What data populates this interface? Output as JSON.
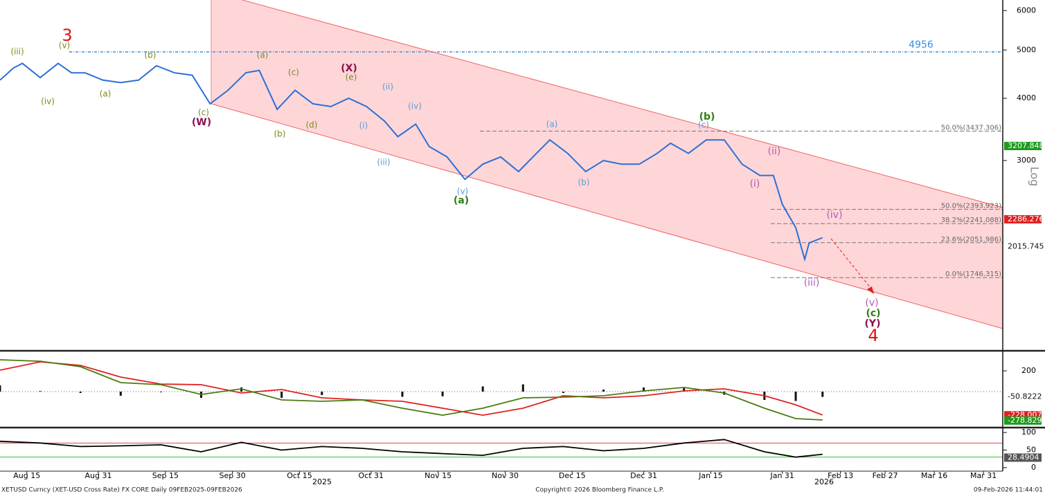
{
  "chart_data": [
    {
      "type": "line",
      "log": true,
      "ylabel": "Log",
      "xlim": [
        "2025-08-09",
        "2026-04-06"
      ],
      "ylim": [
        1245,
        6300
      ],
      "yticks": [
        3000,
        4000,
        5000,
        6000
      ],
      "xticks": [
        {
          "value": "2025-08-15",
          "label": "Aug 15"
        },
        {
          "value": "2025-08-31",
          "label": "Aug 31"
        },
        {
          "value": "2025-09-15",
          "label": "Sep 15"
        },
        {
          "value": "2025-09-30",
          "label": "Sep 30"
        },
        {
          "value": "2025-10-15",
          "label": "Oct 15"
        },
        {
          "value": "2025-10-31",
          "label": "Oct 31"
        },
        {
          "value": "2025-11-15",
          "label": "Nov 15"
        },
        {
          "value": "2025-11-30",
          "label": "Nov 30"
        },
        {
          "value": "2025-12-15",
          "label": "Dec 15"
        },
        {
          "value": "2025-12-31",
          "label": "Dec 31"
        },
        {
          "value": "2026-01-15",
          "label": "Jan 15"
        },
        {
          "value": "2026-01-31",
          "label": "Jan 31"
        },
        {
          "value": "2026-02-13",
          "label": "Feb 13"
        },
        {
          "value": "2026-02-27",
          "label": "Feb 27"
        },
        {
          "value": "2026-03-16",
          "label": "Mar 16"
        },
        {
          "value": "2026-03-31",
          "label": "Mar 31"
        }
      ],
      "years": [
        "2025",
        "2026"
      ],
      "x": [
        "2025-08-09",
        "2025-08-12",
        "2025-08-14",
        "2025-08-18",
        "2025-08-22",
        "2025-08-25",
        "2025-08-28",
        "2025-09-01",
        "2025-09-05",
        "2025-09-09",
        "2025-09-13",
        "2025-09-17",
        "2025-09-21",
        "2025-09-25",
        "2025-09-29",
        "2025-10-03",
        "2025-10-06",
        "2025-10-10",
        "2025-10-14",
        "2025-10-18",
        "2025-10-22",
        "2025-10-26",
        "2025-10-30",
        "2025-11-03",
        "2025-11-06",
        "2025-11-10",
        "2025-11-13",
        "2025-11-17",
        "2025-11-21",
        "2025-11-25",
        "2025-11-29",
        "2025-12-03",
        "2025-12-07",
        "2025-12-10",
        "2025-12-14",
        "2025-12-18",
        "2025-12-22",
        "2025-12-26",
        "2025-12-30",
        "2026-01-03",
        "2026-01-06",
        "2026-01-10",
        "2026-01-14",
        "2026-01-18",
        "2026-01-22",
        "2026-01-26",
        "2026-01-29",
        "2026-01-31",
        "2026-02-03",
        "2026-02-05",
        "2026-02-06",
        "2026-02-09"
      ],
      "series": [
        {
          "color": "#2a6fd6",
          "values": [
            4350,
            4600,
            4700,
            4400,
            4700,
            4500,
            4500,
            4350,
            4300,
            4350,
            4650,
            4500,
            4450,
            3900,
            4150,
            4500,
            4550,
            3800,
            4150,
            3900,
            3850,
            4000,
            3850,
            3600,
            3350,
            3550,
            3200,
            3050,
            2750,
            2950,
            3050,
            2850,
            3100,
            3300,
            3100,
            2850,
            3000,
            2950,
            2950,
            3100,
            3250,
            3100,
            3300,
            3300,
            2950,
            2800,
            2800,
            2450,
            2200,
            1900,
            2050,
            2100
          ]
        }
      ],
      "hlines": [
        {
          "value": 4956,
          "color": "#3a8fe0"
        }
      ],
      "fib": [
        {
          "value": 3437.306,
          "label": "50.0%(3437.306)"
        },
        {
          "value": 2393.923,
          "label": "50.0%(2393.923)"
        },
        {
          "value": 2241.088,
          "label": "38.2%(2241.088)"
        },
        {
          "value": 2051.986,
          "label": "23.6%(2051.986)"
        },
        {
          "value": 1746.315,
          "label": "0.0%(1746.315)"
        }
      ],
      "tags": [
        {
          "value": 3207.848,
          "color": "#1e9a1e"
        },
        {
          "value": 2286.276,
          "color": "#e02020"
        },
        {
          "value": 2015.745
        }
      ],
      "annotations": [
        "3",
        "(iii)",
        "(v)",
        "(iv)",
        "(b)",
        "(a)",
        "(c)",
        "(W)",
        "(a)",
        "(c)",
        "(b)",
        "(d)",
        "(X)",
        "(e)",
        "(ii)",
        "(i)",
        "(iii)",
        "(iv)",
        "(v)",
        "(a)",
        "(a)",
        "(b)",
        "(b)",
        "(c)",
        "(ii)",
        "(i)",
        "(iv)",
        "(iii)",
        "(v)",
        "(c)",
        "(Y)",
        "4"
      ],
      "source": "XETUSD Curncy (XET-USD Cross Rate) FX CORE Daily 09FEB2025-09FEB2026",
      "copyright": "Copyright© 2026 Bloomberg Finance L.P.",
      "timestamp": "09-Feb-2026 11:44:01"
    },
    {
      "type": "line",
      "ylim": [
        -340,
        387
      ],
      "yticks": [
        200
      ],
      "x": [
        "2025-08-09",
        "2025-08-18",
        "2025-08-27",
        "2025-09-05",
        "2025-09-14",
        "2025-09-23",
        "2025-10-02",
        "2025-10-11",
        "2025-10-20",
        "2025-10-29",
        "2025-11-07",
        "2025-11-16",
        "2025-11-25",
        "2025-12-04",
        "2025-12-13",
        "2025-12-22",
        "2025-12-31",
        "2026-01-09",
        "2026-01-18",
        "2026-01-27",
        "2026-02-03",
        "2026-02-09"
      ],
      "series": [
        {
          "color": "#e02020",
          "values": [
            207,
            287,
            253,
            140,
            73,
            67,
            -13,
            20,
            -60,
            -80,
            -93,
            -160,
            -227,
            -160,
            -40,
            -60,
            -40,
            7,
            27,
            -40,
            -127,
            -225
          ]
        },
        {
          "color": "#4a7a10",
          "values": [
            307,
            293,
            240,
            87,
            67,
            -27,
            27,
            -80,
            -93,
            -80,
            -160,
            -227,
            -160,
            -60,
            -53,
            -40,
            7,
            40,
            -13,
            -160,
            -260,
            -273
          ]
        }
      ],
      "histogram": {
        "color": "#111",
        "values": [
          60,
          6,
          -13,
          -40,
          -6,
          -60,
          40,
          -60,
          -33,
          0,
          -50,
          -45,
          50,
          70,
          -13,
          20,
          40,
          33,
          -30,
          -80,
          -90,
          -51
        ]
      },
      "tags": [
        {
          "value": -50.8222
        },
        {
          "value": -228.0071,
          "color": "#e02020"
        },
        {
          "value": -278.8293,
          "color": "#1e9a1e"
        }
      ]
    },
    {
      "type": "line",
      "ylim": [
        -10,
        112
      ],
      "yticks": [
        0,
        50,
        100
      ],
      "x": [
        "2025-08-09",
        "2025-08-18",
        "2025-08-27",
        "2025-09-05",
        "2025-09-14",
        "2025-09-23",
        "2025-10-02",
        "2025-10-11",
        "2025-10-20",
        "2025-10-29",
        "2025-11-07",
        "2025-11-16",
        "2025-11-25",
        "2025-12-04",
        "2025-12-13",
        "2025-12-22",
        "2025-12-31",
        "2026-01-09",
        "2026-01-18",
        "2026-01-27",
        "2026-02-03",
        "2026-02-09"
      ],
      "series": [
        {
          "color": "#000",
          "values": [
            75,
            70,
            60,
            62,
            65,
            45,
            72,
            50,
            60,
            55,
            45,
            40,
            35,
            55,
            60,
            48,
            55,
            70,
            80,
            45,
            30,
            38
          ]
        }
      ],
      "levels": [
        {
          "value": 70,
          "color": "#e04040"
        },
        {
          "value": 30,
          "color": "#30c030"
        }
      ],
      "tags": [
        {
          "value": 28.4904,
          "color": "#555"
        }
      ]
    }
  ]
}
